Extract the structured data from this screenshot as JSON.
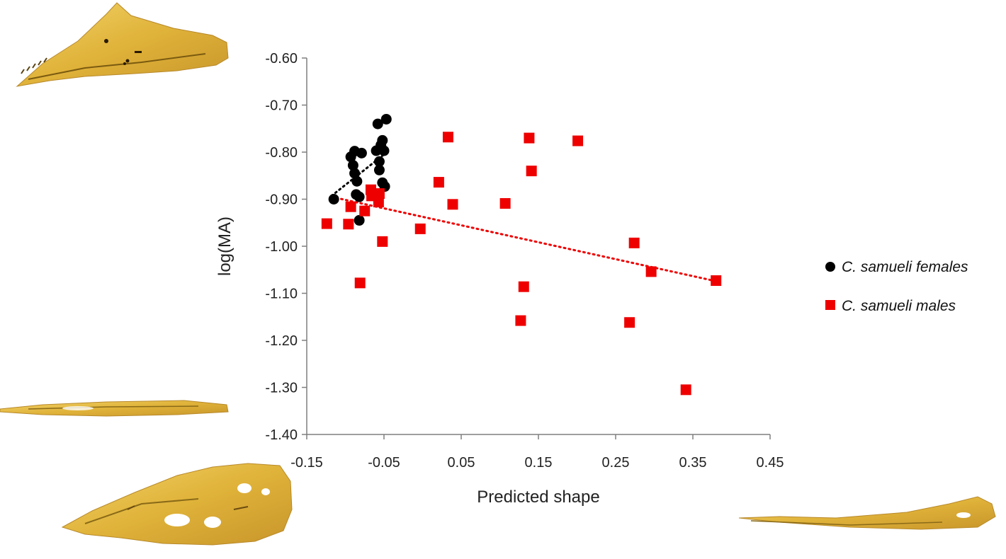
{
  "chart_data": {
    "type": "scatter",
    "title": "",
    "xlabel": "Predicted shape",
    "ylabel": "log(MA)",
    "xlim": [
      -0.15,
      0.45
    ],
    "ylim": [
      -1.4,
      -0.6
    ],
    "x_ticks": [
      "-0.15",
      "-0.05",
      "0.05",
      "0.15",
      "0.25",
      "0.35",
      "0.45"
    ],
    "x_tick_values": [
      -0.15,
      -0.05,
      0.05,
      0.15,
      0.25,
      0.35,
      0.45
    ],
    "y_ticks": [
      "-0.60",
      "-0.70",
      "-0.80",
      "-0.90",
      "-1.00",
      "-1.10",
      "-1.20",
      "-1.30",
      "-1.40"
    ],
    "y_tick_values": [
      -0.6,
      -0.7,
      -0.8,
      -0.9,
      -1.0,
      -1.1,
      -1.2,
      -1.3,
      -1.4
    ],
    "grid": false,
    "legend_position": "right",
    "series": [
      {
        "name": "C. samueli females",
        "marker": "circle",
        "color": "#000000",
        "points": [
          [
            -0.115,
            -0.9
          ],
          [
            -0.093,
            -0.81
          ],
          [
            -0.088,
            -0.798
          ],
          [
            -0.09,
            -0.828
          ],
          [
            -0.088,
            -0.845
          ],
          [
            -0.085,
            -0.862
          ],
          [
            -0.086,
            -0.89
          ],
          [
            -0.082,
            -0.895
          ],
          [
            -0.082,
            -0.945
          ],
          [
            -0.079,
            -0.802
          ],
          [
            -0.06,
            -0.797
          ],
          [
            -0.058,
            -0.74
          ],
          [
            -0.056,
            -0.82
          ],
          [
            -0.056,
            -0.838
          ],
          [
            -0.054,
            -0.785
          ],
          [
            -0.052,
            -0.775
          ],
          [
            -0.052,
            -0.865
          ],
          [
            -0.05,
            -0.797
          ],
          [
            -0.049,
            -0.873
          ],
          [
            -0.047,
            -0.73
          ]
        ],
        "trendline": [
          [
            -0.118,
            -0.893
          ],
          [
            -0.05,
            -0.805
          ]
        ],
        "trendline_color": "#000000"
      },
      {
        "name": "C. samueli males",
        "marker": "square",
        "color": "#ee0000",
        "points": [
          [
            -0.124,
            -0.952
          ],
          [
            -0.096,
            -0.953
          ],
          [
            -0.093,
            -0.916
          ],
          [
            -0.081,
            -1.078
          ],
          [
            -0.075,
            -0.925
          ],
          [
            -0.067,
            -0.88
          ],
          [
            -0.066,
            -0.893
          ],
          [
            -0.063,
            -0.89
          ],
          [
            -0.058,
            -0.892
          ],
          [
            -0.057,
            -0.906
          ],
          [
            -0.056,
            -0.888
          ],
          [
            -0.052,
            -0.99
          ],
          [
            -0.003,
            -0.963
          ],
          [
            0.021,
            -0.864
          ],
          [
            0.033,
            -0.768
          ],
          [
            0.039,
            -0.911
          ],
          [
            0.107,
            -0.909
          ],
          [
            0.127,
            -1.158
          ],
          [
            0.131,
            -1.086
          ],
          [
            0.138,
            -0.77
          ],
          [
            0.141,
            -0.84
          ],
          [
            0.201,
            -0.776
          ],
          [
            0.268,
            -1.162
          ],
          [
            0.274,
            -0.993
          ],
          [
            0.296,
            -1.054
          ],
          [
            0.341,
            -1.305
          ],
          [
            0.38,
            -1.073
          ]
        ],
        "trendline": [
          [
            -0.118,
            -0.895
          ],
          [
            0.382,
            -1.075
          ]
        ],
        "trendline_color": "#ee0000"
      }
    ]
  }
}
